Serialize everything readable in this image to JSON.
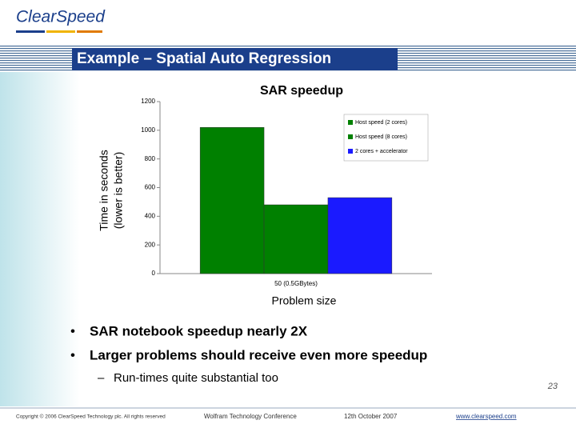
{
  "slide": {
    "logo": "ClearSpeed",
    "title": "Example – Spatial Auto Regression",
    "bullets": [
      "SAR notebook speedup nearly 2X",
      "Larger problems should receive even more speedup"
    ],
    "sub_bullet": "Run-times quite substantial too",
    "footer": {
      "copyright": "Copyright © 2006 ClearSpeed Technology plc. All rights reserved",
      "event": "Wolfram Technology Conference",
      "date": "12th October 2007",
      "url": "www.clearspeed.com",
      "page": "23"
    }
  },
  "chart_data": {
    "type": "bar",
    "title": "SAR speedup",
    "ylabel": [
      "Time in seconds",
      "(lower is better)"
    ],
    "xlabel": "Problem size",
    "categories": [
      "50 (0.5GBytes)"
    ],
    "series": [
      {
        "name": "Host speed (2 cores)",
        "color": "#008000",
        "values": [
          1020
        ]
      },
      {
        "name": "Host speed (8 cores)",
        "color": "#008000",
        "values": [
          480
        ]
      },
      {
        "name": "2 cores + accelerator",
        "color": "#1a1aff",
        "values": [
          530
        ]
      }
    ],
    "ylim": [
      0,
      1200
    ],
    "yticks": [
      0,
      200,
      400,
      600,
      800,
      1000,
      1200
    ],
    "grid": false,
    "legend": "top-right"
  }
}
